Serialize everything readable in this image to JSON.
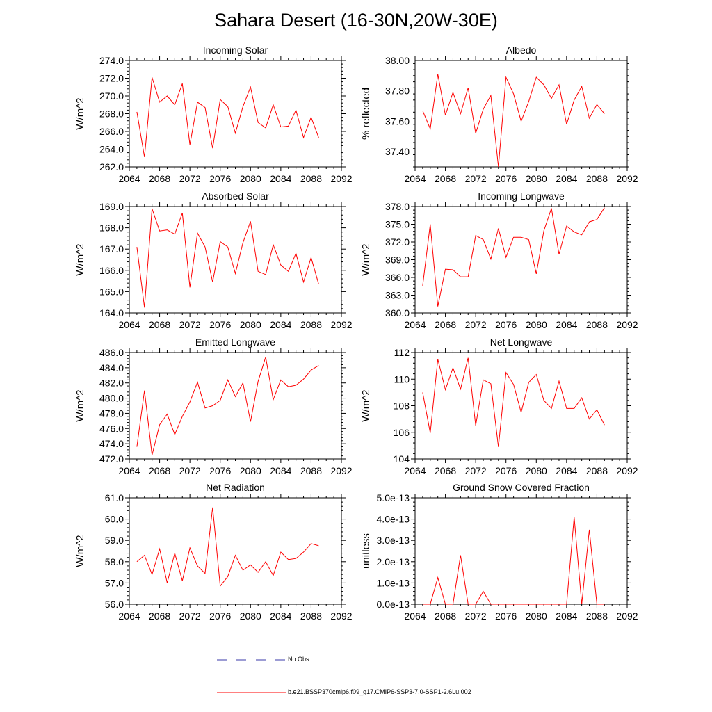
{
  "title": "Sahara Desert (16-30N,20W-30E)",
  "x_ticks": [
    "2064",
    "2068",
    "2072",
    "2076",
    "2080",
    "2084",
    "2088",
    "2092"
  ],
  "legend": {
    "obs_label": "No Obs",
    "model_label": "b.e21.BSSP370cmip6.f09_g17.CMIP6-SSP3-7.0-SSP1-2.6Lu.002",
    "obs_color": "#3a3aaa",
    "model_color": "#ff0000"
  },
  "chart_data": [
    {
      "type": "line",
      "title": "Incoming Solar",
      "ylabel": "W/m^2",
      "xlim": [
        2064,
        2092
      ],
      "ylim": [
        262,
        274
      ],
      "yticks": [
        262,
        264,
        266,
        268,
        270,
        272,
        274
      ],
      "ytick_labels": [
        "262.0",
        "264.0",
        "266.0",
        "268.0",
        "270.0",
        "272.0",
        "274.0"
      ],
      "x": [
        2065,
        2066,
        2067,
        2068,
        2069,
        2070,
        2071,
        2072,
        2073,
        2074,
        2075,
        2076,
        2077,
        2078,
        2079,
        2080,
        2081,
        2082,
        2083,
        2084,
        2085,
        2086,
        2087,
        2088,
        2089
      ],
      "series": [
        {
          "values": [
            268.2,
            263.1,
            272.1,
            269.3,
            270.0,
            269.0,
            271.4,
            264.5,
            269.3,
            268.7,
            264.1,
            269.6,
            268.8,
            265.8,
            268.8,
            271.0,
            267.0,
            266.4,
            269.0,
            266.5,
            266.6,
            268.4,
            265.3,
            267.6,
            265.3
          ]
        }
      ]
    },
    {
      "type": "line",
      "title": "Albedo",
      "ylabel": "% reflected",
      "xlim": [
        2064,
        2092
      ],
      "ylim": [
        37.3,
        38.0
      ],
      "yticks": [
        37.4,
        37.6,
        37.8,
        38.0
      ],
      "ytick_labels": [
        "37.40",
        "37.60",
        "37.80",
        "38.00"
      ],
      "x": [
        2065,
        2066,
        2067,
        2068,
        2069,
        2070,
        2071,
        2072,
        2073,
        2074,
        2075,
        2076,
        2077,
        2078,
        2079,
        2080,
        2081,
        2082,
        2083,
        2084,
        2085,
        2086,
        2087,
        2088,
        2089
      ],
      "series": [
        {
          "values": [
            37.67,
            37.55,
            37.91,
            37.64,
            37.79,
            37.65,
            37.82,
            37.52,
            37.68,
            37.77,
            37.3,
            37.89,
            37.78,
            37.6,
            37.73,
            37.89,
            37.84,
            37.75,
            37.84,
            37.58,
            37.74,
            37.83,
            37.62,
            37.71,
            37.65
          ]
        }
      ]
    },
    {
      "type": "line",
      "title": "Absorbed Solar",
      "ylabel": "W/m^2",
      "xlim": [
        2064,
        2092
      ],
      "ylim": [
        164,
        169
      ],
      "yticks": [
        164,
        165,
        166,
        167,
        168,
        169
      ],
      "ytick_labels": [
        "164.0",
        "165.0",
        "166.0",
        "167.0",
        "168.0",
        "169.0"
      ],
      "x": [
        2065,
        2066,
        2067,
        2068,
        2069,
        2070,
        2071,
        2072,
        2073,
        2074,
        2075,
        2076,
        2077,
        2078,
        2079,
        2080,
        2081,
        2082,
        2083,
        2084,
        2085,
        2086,
        2087,
        2088,
        2089
      ],
      "series": [
        {
          "values": [
            167.1,
            164.25,
            168.9,
            167.85,
            167.9,
            167.7,
            168.7,
            165.2,
            167.75,
            167.1,
            165.45,
            167.35,
            167.1,
            165.85,
            167.3,
            168.3,
            165.95,
            165.8,
            167.2,
            166.25,
            165.95,
            166.8,
            165.45,
            166.6,
            165.35
          ]
        }
      ]
    },
    {
      "type": "line",
      "title": "Incoming Longwave",
      "ylabel": "W/m^2",
      "xlim": [
        2064,
        2092
      ],
      "ylim": [
        360,
        378
      ],
      "yticks": [
        360,
        363,
        366,
        369,
        372,
        375,
        378
      ],
      "ytick_labels": [
        "360.0",
        "363.0",
        "366.0",
        "369.0",
        "372.0",
        "375.0",
        "378.0"
      ],
      "x": [
        2065,
        2066,
        2067,
        2068,
        2069,
        2070,
        2071,
        2072,
        2073,
        2074,
        2075,
        2076,
        2077,
        2078,
        2079,
        2080,
        2081,
        2082,
        2083,
        2084,
        2085,
        2086,
        2087,
        2088,
        2089
      ],
      "series": [
        {
          "values": [
            364.6,
            375.0,
            361.1,
            367.4,
            367.3,
            366.1,
            366.1,
            373.1,
            372.4,
            369.1,
            374.3,
            369.4,
            372.8,
            372.8,
            372.4,
            366.6,
            373.9,
            377.7,
            369.9,
            374.7,
            373.7,
            373.2,
            375.4,
            375.8,
            377.8
          ]
        }
      ]
    },
    {
      "type": "line",
      "title": "Emitted Longwave",
      "ylabel": "W/m^2",
      "xlim": [
        2064,
        2092
      ],
      "ylim": [
        472,
        486
      ],
      "yticks": [
        472,
        474,
        476,
        478,
        480,
        482,
        484,
        486
      ],
      "ytick_labels": [
        "472.0",
        "474.0",
        "476.0",
        "478.0",
        "480.0",
        "482.0",
        "484.0",
        "486.0"
      ],
      "x": [
        2065,
        2066,
        2067,
        2068,
        2069,
        2070,
        2071,
        2072,
        2073,
        2074,
        2075,
        2076,
        2077,
        2078,
        2079,
        2080,
        2081,
        2082,
        2083,
        2084,
        2085,
        2086,
        2087,
        2088,
        2089
      ],
      "series": [
        {
          "values": [
            473.6,
            481.0,
            472.5,
            476.5,
            477.9,
            475.2,
            477.6,
            479.5,
            482.1,
            478.7,
            479.0,
            479.7,
            482.4,
            480.2,
            482.0,
            476.9,
            482.2,
            485.4,
            479.8,
            482.4,
            481.5,
            481.7,
            482.5,
            483.7,
            484.3
          ]
        }
      ]
    },
    {
      "type": "line",
      "title": "Net Longwave",
      "ylabel": "W/m^2",
      "xlim": [
        2064,
        2092
      ],
      "ylim": [
        104,
        112
      ],
      "yticks": [
        104,
        106,
        108,
        110,
        112
      ],
      "ytick_labels": [
        "104",
        "106",
        "108",
        "110",
        "112"
      ],
      "x": [
        2065,
        2066,
        2067,
        2068,
        2069,
        2070,
        2071,
        2072,
        2073,
        2074,
        2075,
        2076,
        2077,
        2078,
        2079,
        2080,
        2081,
        2082,
        2083,
        2084,
        2085,
        2086,
        2087,
        2088,
        2089
      ],
      "series": [
        {
          "values": [
            109.0,
            105.95,
            111.5,
            109.2,
            110.85,
            109.25,
            111.6,
            106.5,
            109.95,
            109.65,
            104.9,
            110.5,
            109.6,
            107.5,
            109.75,
            110.35,
            108.4,
            107.8,
            109.85,
            107.8,
            107.8,
            108.6,
            107.0,
            107.7,
            106.55
          ]
        }
      ]
    },
    {
      "type": "line",
      "title": "Net Radiation",
      "ylabel": "W/m^2",
      "xlim": [
        2064,
        2092
      ],
      "ylim": [
        56,
        61
      ],
      "yticks": [
        56,
        57,
        58,
        59,
        60,
        61
      ],
      "ytick_labels": [
        "56.0",
        "57.0",
        "58.0",
        "59.0",
        "60.0",
        "61.0"
      ],
      "x": [
        2065,
        2066,
        2067,
        2068,
        2069,
        2070,
        2071,
        2072,
        2073,
        2074,
        2075,
        2076,
        2077,
        2078,
        2079,
        2080,
        2081,
        2082,
        2083,
        2084,
        2085,
        2086,
        2087,
        2088,
        2089
      ],
      "series": [
        {
          "values": [
            58.0,
            58.3,
            57.4,
            58.6,
            57.0,
            58.4,
            57.1,
            58.65,
            57.8,
            57.45,
            60.55,
            56.85,
            57.3,
            58.3,
            57.6,
            57.85,
            57.5,
            58.0,
            57.35,
            58.45,
            58.1,
            58.15,
            58.45,
            58.85,
            58.75
          ]
        }
      ]
    },
    {
      "type": "line",
      "title": "Ground Snow Covered Fraction",
      "ylabel": "unitless",
      "xlim": [
        2064,
        2092
      ],
      "ylim": [
        0,
        5e-13
      ],
      "yticks": [
        0,
        1e-13,
        2e-13,
        3e-13,
        4e-13,
        5e-13
      ],
      "ytick_labels": [
        "0.0e-13",
        "1.0e-13",
        "2.0e-13",
        "3.0e-13",
        "4.0e-13",
        "5.0e-13"
      ],
      "x": [
        2065,
        2066,
        2067,
        2068,
        2069,
        2070,
        2071,
        2072,
        2073,
        2074,
        2075,
        2076,
        2077,
        2078,
        2079,
        2080,
        2081,
        2082,
        2083,
        2084,
        2085,
        2086,
        2087,
        2088,
        2089
      ],
      "series": [
        {
          "values": [
            0,
            0,
            1.25e-13,
            0,
            0,
            2.3e-13,
            0,
            0,
            6e-14,
            0,
            0,
            0,
            0,
            0,
            0,
            0,
            0,
            0,
            0,
            0,
            4.1e-13,
            0,
            3.5e-13,
            0,
            0
          ]
        }
      ]
    }
  ]
}
